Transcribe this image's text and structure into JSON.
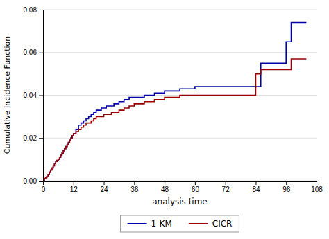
{
  "chart_data": {
    "type": "step",
    "xlabel": "analysis time",
    "ylabel": "Cumulative Incidence Function",
    "xlim": [
      0,
      108
    ],
    "ylim": [
      0,
      0.08
    ],
    "xticks": [
      0,
      12,
      24,
      36,
      48,
      60,
      72,
      84,
      96,
      108
    ],
    "yticks": [
      {
        "value": 0.0,
        "label": "0.00"
      },
      {
        "value": 0.02,
        "label": "0.02"
      },
      {
        "value": 0.04,
        "label": "0.04"
      },
      {
        "value": 0.06,
        "label": "0.06"
      },
      {
        "value": 0.08,
        "label": "0.08"
      }
    ],
    "grid": "y",
    "legend": "bottom",
    "x": [
      0,
      0.5,
      1,
      1.5,
      2,
      2.5,
      3,
      3.5,
      4,
      4.5,
      5,
      5.5,
      6,
      6.5,
      7,
      7.5,
      8,
      8.5,
      9,
      9.5,
      10,
      10.5,
      11,
      11.5,
      12,
      13,
      14,
      15,
      16,
      17,
      18,
      19,
      20,
      21,
      22,
      23,
      24,
      25,
      26,
      27,
      28,
      30,
      32,
      34,
      36,
      38,
      40,
      42,
      44,
      46,
      48,
      50,
      52,
      54,
      56,
      58,
      60,
      62,
      64,
      66,
      68,
      70,
      72,
      84,
      86,
      96,
      98,
      104
    ],
    "series": [
      {
        "name": "1-KM",
        "color": "#0000aa",
        "values": [
          0,
          0.001,
          0.0015,
          0.002,
          0.003,
          0.004,
          0.005,
          0.006,
          0.007,
          0.008,
          0.009,
          0.0095,
          0.01,
          0.011,
          0.012,
          0.013,
          0.014,
          0.015,
          0.016,
          0.017,
          0.018,
          0.019,
          0.02,
          0.021,
          0.022,
          0.024,
          0.026,
          0.027,
          0.028,
          0.029,
          0.03,
          0.031,
          0.032,
          0.033,
          0.033,
          0.034,
          0.034,
          0.035,
          0.035,
          0.035,
          0.036,
          0.037,
          0.038,
          0.039,
          0.039,
          0.039,
          0.04,
          0.04,
          0.041,
          0.041,
          0.042,
          0.042,
          0.042,
          0.043,
          0.043,
          0.043,
          0.044,
          0.044,
          0.044,
          0.044,
          0.044,
          0.044,
          0.044,
          0.044,
          0.055,
          0.065,
          0.074,
          0.074
        ]
      },
      {
        "name": "CICR",
        "color": "#990000",
        "values": [
          0,
          0.001,
          0.0015,
          0.002,
          0.003,
          0.004,
          0.005,
          0.006,
          0.007,
          0.008,
          0.009,
          0.0095,
          0.01,
          0.011,
          0.012,
          0.013,
          0.014,
          0.015,
          0.016,
          0.017,
          0.018,
          0.019,
          0.02,
          0.021,
          0.022,
          0.023,
          0.024,
          0.025,
          0.026,
          0.027,
          0.027,
          0.028,
          0.029,
          0.03,
          0.03,
          0.03,
          0.031,
          0.031,
          0.031,
          0.032,
          0.032,
          0.033,
          0.034,
          0.035,
          0.036,
          0.036,
          0.037,
          0.037,
          0.038,
          0.038,
          0.039,
          0.039,
          0.039,
          0.04,
          0.04,
          0.04,
          0.04,
          0.04,
          0.04,
          0.04,
          0.04,
          0.04,
          0.04,
          0.05,
          0.052,
          0.052,
          0.057,
          0.057
        ]
      }
    ]
  }
}
